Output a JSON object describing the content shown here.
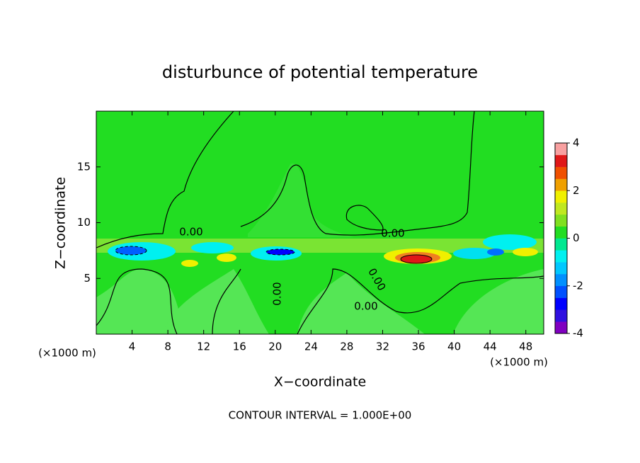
{
  "chart_data": {
    "type": "contour",
    "title": "disturbunce of potential temperature",
    "xlabel": "X−coordinate",
    "ylabel": "Z−coordinate",
    "x_unit_labels": [
      "(×1000 m)",
      "(×1000 m)"
    ],
    "footnote": "CONTOUR INTERVAL = 1.000E+00",
    "contour_labels": [
      "0.00",
      "0.00",
      "0.00",
      "0.00",
      "0.00"
    ],
    "xlim": [
      0,
      50
    ],
    "xticks": [
      4,
      8,
      12,
      16,
      20,
      24,
      28,
      32,
      36,
      40,
      44,
      48
    ],
    "ylim": [
      0,
      20
    ],
    "yticks": [
      5,
      10,
      15
    ],
    "colorbar": {
      "lim": [
        -4,
        4
      ],
      "ticks": [
        -4,
        -2,
        0,
        2,
        4
      ],
      "colors": [
        "#8000c0",
        "#3010e0",
        "#0000ff",
        "#0050ff",
        "#0090ff",
        "#00c8ff",
        "#00f0f0",
        "#00e890",
        "#22dd22",
        "#80e020",
        "#c0e820",
        "#f0f000",
        "#f0a000",
        "#f05000",
        "#e01818",
        "#f8a0a0"
      ]
    }
  }
}
